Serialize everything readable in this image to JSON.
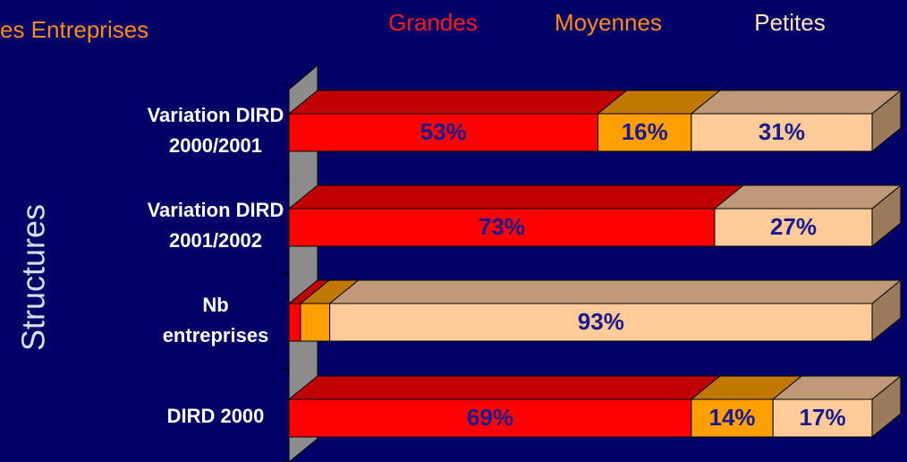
{
  "chart_data": {
    "type": "bar3d_stacked_horizontal",
    "title": "es Entreprises",
    "y_label": "Structures",
    "categories": [
      "Variation DIRD\n2000/2001",
      "Variation DIRD\n2001/2002",
      "Nb\nentreprises",
      "DIRD 2000"
    ],
    "xlim": [
      0,
      100
    ],
    "series": [
      {
        "name": "Grandes",
        "color": "#ff0000",
        "top": "#c00000",
        "legend_color": "#ff1a1a",
        "values": [
          53,
          73,
          2,
          69
        ],
        "value_labels": [
          "53%",
          "73%",
          null,
          "69%"
        ]
      },
      {
        "name": "Moyennes",
        "color": "#ffa000",
        "top": "#c07800",
        "legend_color": "#ff8c1a",
        "values": [
          16,
          0,
          5,
          14
        ],
        "value_labels": [
          "16%",
          null,
          null,
          "14%"
        ]
      },
      {
        "name": "Petites",
        "color": "#ffcc99",
        "top": "#c09a78",
        "legend_color": "#ffe4b8",
        "values": [
          31,
          27,
          93,
          17
        ],
        "value_labels": [
          "31%",
          "27%",
          "93%",
          "17%"
        ]
      }
    ]
  }
}
